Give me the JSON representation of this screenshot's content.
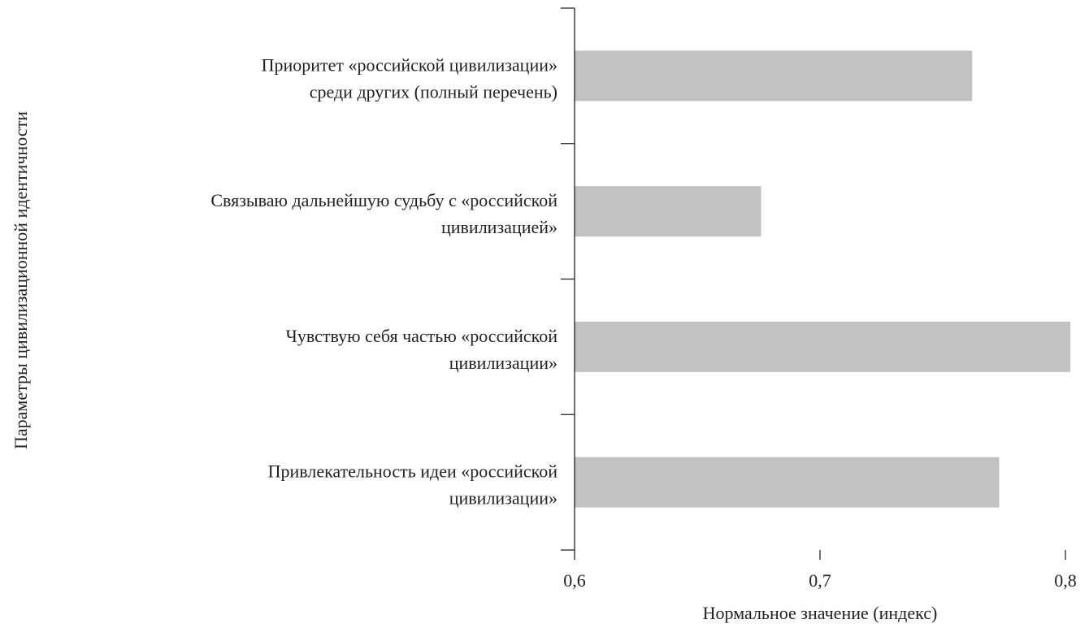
{
  "chart_data": {
    "type": "bar",
    "orientation": "horizontal",
    "categories": [
      [
        "Приоритет «российской цивилизации»",
        "среди других (полный перечень)"
      ],
      [
        "Связываю дальнейшую судьбу с «российской",
        "цивилизацией»"
      ],
      [
        "Чувствую себя частью «российской",
        "цивилизации»"
      ],
      [
        "Привлекательность идеи «российской",
        "цивилизации»"
      ]
    ],
    "values": [
      0.762,
      0.676,
      0.802,
      0.773
    ],
    "xlabel": "Нормальное значение (индекс)",
    "ylabel": "Параметры цивилизационной идентичности",
    "xlim": [
      0.6,
      0.8
    ],
    "xticks": [
      "0,6",
      "0,7",
      "0,8"
    ],
    "xtick_values": [
      0.6,
      0.7,
      0.8
    ],
    "grid": false,
    "bar_color": "#c1c2c1"
  }
}
